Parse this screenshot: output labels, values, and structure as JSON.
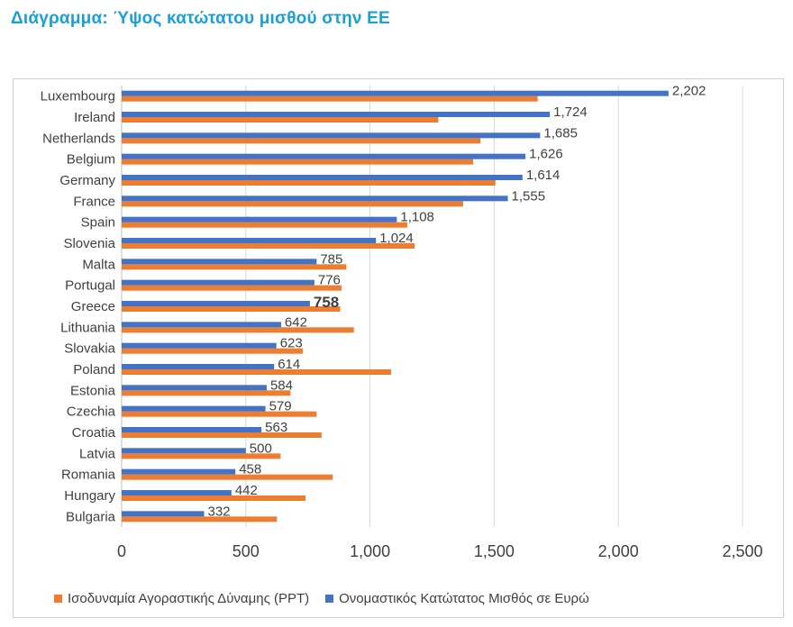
{
  "title": "Διάγραμμα: Ύψος κατώτατου μισθού στην ΕΕ",
  "colors": {
    "ppt": "#ED7D31",
    "nominal": "#4472C4",
    "title": "#1AA0D8",
    "grid": "#D9D9D9"
  },
  "chart_data": {
    "type": "bar",
    "orientation": "horizontal",
    "categories": [
      "Luxembourg",
      "Ireland",
      "Netherlands",
      "Belgium",
      "Germany",
      "France",
      "Spain",
      "Slovenia",
      "Malta",
      "Portugal",
      "Greece",
      "Lithuania",
      "Slovakia",
      "Poland",
      "Estonia",
      "Czechia",
      "Croatia",
      "Latvia",
      "Romania",
      "Hungary",
      "Bulgaria"
    ],
    "series": [
      {
        "name": "Ονομαστικός Κατώτατος Μισθός σε Ευρώ",
        "values": [
          2202,
          1724,
          1685,
          1626,
          1614,
          1555,
          1108,
          1024,
          785,
          776,
          758,
          642,
          623,
          614,
          584,
          579,
          563,
          500,
          458,
          442,
          332
        ],
        "labels": [
          "2,202",
          "1,724",
          "1,685",
          "1,626",
          "1,614",
          "1,555",
          "1,108",
          "1,024",
          "785",
          "776",
          "758",
          "642",
          "623",
          "614",
          "584",
          "579",
          "563",
          "500",
          "458",
          "442",
          "332"
        ]
      },
      {
        "name": "Ισοδυναμία Αγοραστικής Δύναμης (PPT)",
        "values": [
          1675,
          1275,
          1445,
          1415,
          1505,
          1375,
          1150,
          1180,
          905,
          885,
          880,
          935,
          730,
          1085,
          680,
          785,
          805,
          640,
          850,
          740,
          625
        ]
      }
    ],
    "highlight": "Greece",
    "xlim": [
      0,
      2500
    ],
    "xticks": [
      0,
      500,
      1000,
      1500,
      2000,
      2500
    ],
    "xtick_labels": [
      "0",
      "500",
      "1,000",
      "1,500",
      "2,000",
      "2,500"
    ],
    "legend_position": "bottom"
  }
}
